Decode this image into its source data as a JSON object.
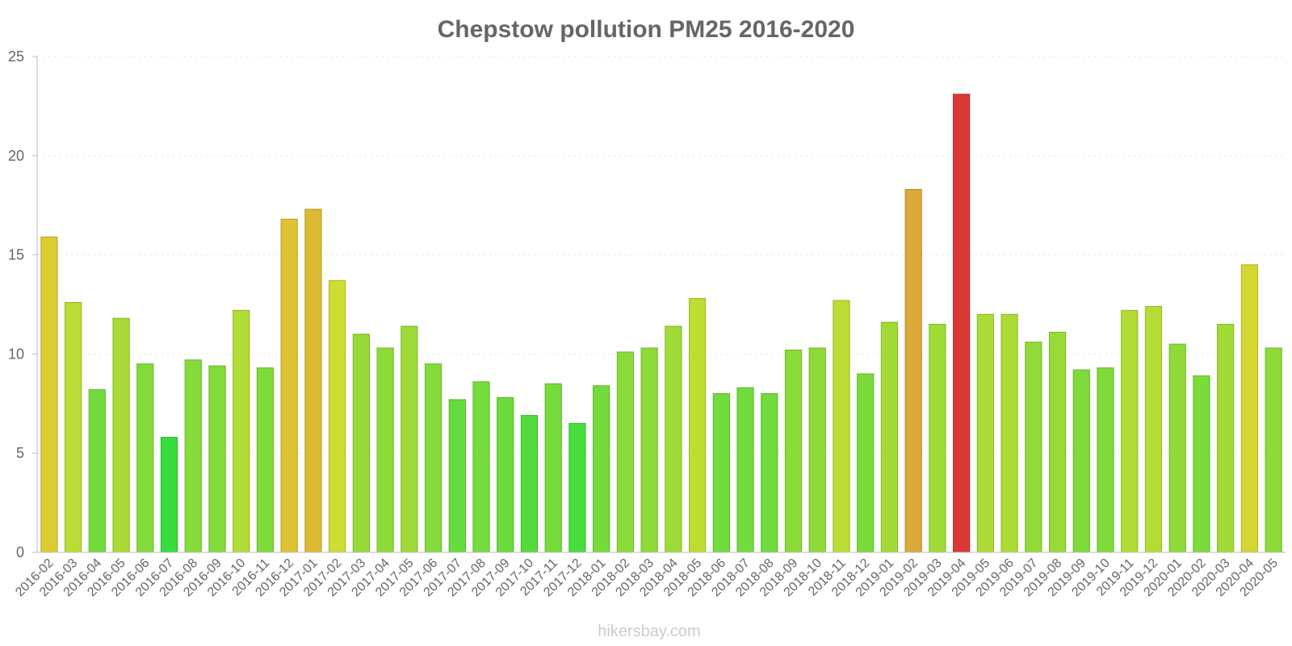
{
  "chart_data": {
    "type": "bar",
    "title": "Chepstow pollution PM25 2016-2020",
    "xlabel": "",
    "ylabel": "",
    "ylim": [
      0,
      25
    ],
    "yticks": [
      0,
      5,
      10,
      15,
      20,
      25
    ],
    "grid": true,
    "categories": [
      "2016-02",
      "2016-03",
      "2016-04",
      "2016-05",
      "2016-06",
      "2016-07",
      "2016-08",
      "2016-09",
      "2016-10",
      "2016-11",
      "2016-12",
      "2017-01",
      "2017-02",
      "2017-03",
      "2017-04",
      "2017-05",
      "2017-06",
      "2017-07",
      "2017-08",
      "2017-09",
      "2017-10",
      "2017-11",
      "2017-12",
      "2018-01",
      "2018-02",
      "2018-03",
      "2018-04",
      "2018-05",
      "2018-06",
      "2018-07",
      "2018-08",
      "2018-09",
      "2018-10",
      "2018-11",
      "2018-12",
      "2019-01",
      "2019-02",
      "2019-03",
      "2019-04",
      "2019-05",
      "2019-06",
      "2019-07",
      "2019-08",
      "2019-09",
      "2019-10",
      "2019-11",
      "2019-12",
      "2020-01",
      "2020-02",
      "2020-03",
      "2020-04",
      "2020-05"
    ],
    "values": [
      15.9,
      12.6,
      8.2,
      11.8,
      9.5,
      5.8,
      9.7,
      9.4,
      12.2,
      9.3,
      16.8,
      17.3,
      13.7,
      11.0,
      10.3,
      11.4,
      9.5,
      7.7,
      8.6,
      7.8,
      6.9,
      8.5,
      6.5,
      8.4,
      10.1,
      10.3,
      11.4,
      12.8,
      8.0,
      8.3,
      8.0,
      10.2,
      10.3,
      12.7,
      9.0,
      11.6,
      18.3,
      11.5,
      23.1,
      12.0,
      12.0,
      10.6,
      11.1,
      9.2,
      9.3,
      12.2,
      12.4,
      10.5,
      8.9,
      11.5,
      14.5,
      10.3
    ]
  },
  "watermark": "hikersbay.com"
}
